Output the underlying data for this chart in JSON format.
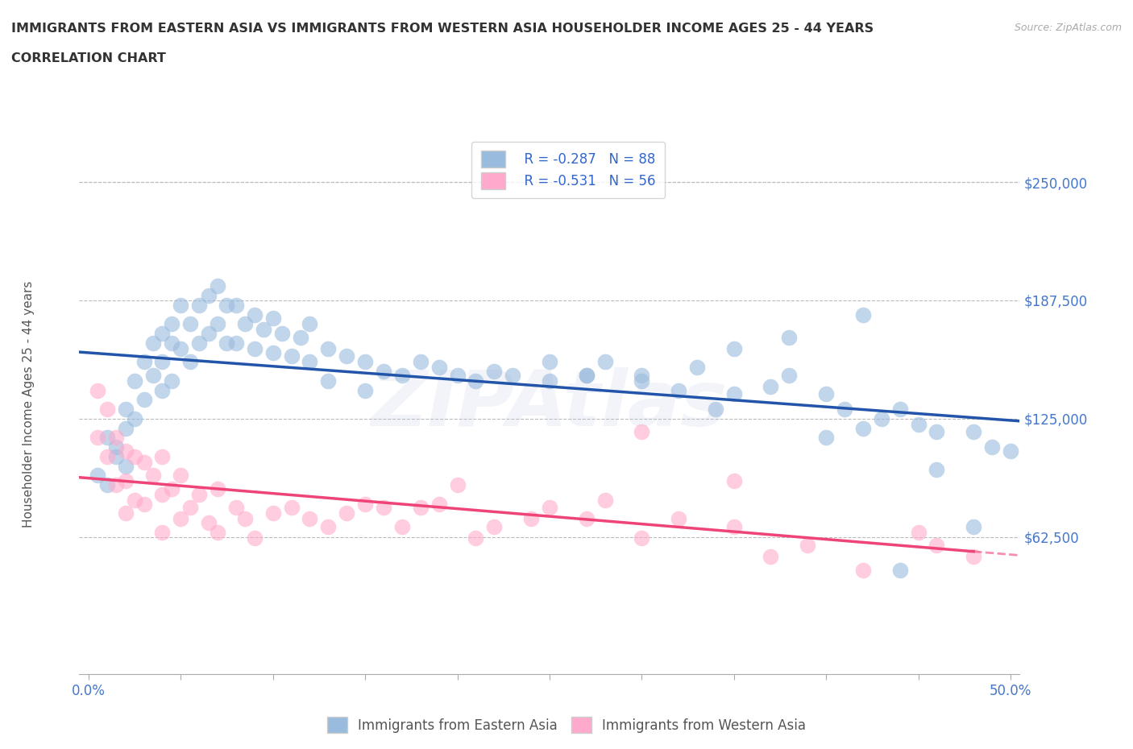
{
  "title_line1": "IMMIGRANTS FROM EASTERN ASIA VS IMMIGRANTS FROM WESTERN ASIA HOUSEHOLDER INCOME AGES 25 - 44 YEARS",
  "title_line2": "CORRELATION CHART",
  "source_text": "Source: ZipAtlas.com",
  "ylabel": "Householder Income Ages 25 - 44 years",
  "xlim": [
    -0.005,
    0.505
  ],
  "ylim": [
    -10000,
    275000
  ],
  "xtick_vals": [
    0.0,
    0.05,
    0.1,
    0.15,
    0.2,
    0.25,
    0.3,
    0.35,
    0.4,
    0.45,
    0.5
  ],
  "xtick_labels": [
    "0.0%",
    "",
    "",
    "",
    "",
    "",
    "",
    "",
    "",
    "",
    "50.0%"
  ],
  "ytick_vals": [
    62500,
    125000,
    187500,
    250000
  ],
  "ytick_labels": [
    "$62,500",
    "$125,000",
    "$187,500",
    "$250,000"
  ],
  "grid_color": "#bbbbbb",
  "background_color": "#ffffff",
  "watermark": "ZIPAtlas",
  "legend_r1": "R = -0.287   N = 88",
  "legend_r2": "R = -0.531   N = 56",
  "legend_label1": "Immigrants from Eastern Asia",
  "legend_label2": "Immigrants from Western Asia",
  "color_blue": "#99bbdd",
  "color_pink": "#ffaacc",
  "trend_blue": "#2255aa",
  "trend_pink": "#ee4477",
  "title_color": "#333333",
  "axis_label_color": "#555555",
  "tick_label_color": "#4477cc",
  "r_color": "#3366cc",
  "eastern_x": [
    0.005,
    0.01,
    0.01,
    0.015,
    0.015,
    0.02,
    0.02,
    0.02,
    0.025,
    0.025,
    0.03,
    0.03,
    0.035,
    0.035,
    0.04,
    0.04,
    0.04,
    0.045,
    0.045,
    0.045,
    0.05,
    0.05,
    0.055,
    0.055,
    0.06,
    0.06,
    0.065,
    0.065,
    0.07,
    0.07,
    0.075,
    0.075,
    0.08,
    0.08,
    0.085,
    0.09,
    0.09,
    0.095,
    0.1,
    0.1,
    0.105,
    0.11,
    0.115,
    0.12,
    0.12,
    0.13,
    0.13,
    0.14,
    0.15,
    0.15,
    0.16,
    0.17,
    0.18,
    0.19,
    0.2,
    0.21,
    0.22,
    0.23,
    0.25,
    0.27,
    0.28,
    0.3,
    0.32,
    0.33,
    0.35,
    0.37,
    0.38,
    0.4,
    0.41,
    0.43,
    0.44,
    0.45,
    0.46,
    0.48,
    0.49,
    0.5,
    0.38,
    0.42,
    0.25,
    0.3,
    0.35,
    0.42,
    0.48,
    0.34,
    0.27,
    0.44,
    0.4,
    0.46
  ],
  "eastern_y": [
    95000,
    115000,
    90000,
    110000,
    105000,
    130000,
    120000,
    100000,
    145000,
    125000,
    155000,
    135000,
    165000,
    148000,
    170000,
    155000,
    140000,
    175000,
    165000,
    145000,
    185000,
    162000,
    175000,
    155000,
    185000,
    165000,
    190000,
    170000,
    195000,
    175000,
    185000,
    165000,
    185000,
    165000,
    175000,
    180000,
    162000,
    172000,
    178000,
    160000,
    170000,
    158000,
    168000,
    175000,
    155000,
    162000,
    145000,
    158000,
    155000,
    140000,
    150000,
    148000,
    155000,
    152000,
    148000,
    145000,
    150000,
    148000,
    145000,
    148000,
    155000,
    148000,
    140000,
    152000,
    138000,
    142000,
    148000,
    138000,
    130000,
    125000,
    130000,
    122000,
    118000,
    118000,
    110000,
    108000,
    168000,
    180000,
    155000,
    145000,
    162000,
    120000,
    68000,
    130000,
    148000,
    45000,
    115000,
    98000
  ],
  "western_x": [
    0.005,
    0.005,
    0.01,
    0.01,
    0.015,
    0.015,
    0.02,
    0.02,
    0.02,
    0.025,
    0.025,
    0.03,
    0.03,
    0.035,
    0.04,
    0.04,
    0.04,
    0.045,
    0.05,
    0.05,
    0.055,
    0.06,
    0.065,
    0.07,
    0.07,
    0.08,
    0.085,
    0.09,
    0.1,
    0.11,
    0.12,
    0.13,
    0.14,
    0.15,
    0.16,
    0.17,
    0.18,
    0.19,
    0.2,
    0.21,
    0.22,
    0.24,
    0.25,
    0.27,
    0.28,
    0.3,
    0.32,
    0.35,
    0.37,
    0.39,
    0.42,
    0.45,
    0.46,
    0.48,
    0.3,
    0.35
  ],
  "western_y": [
    140000,
    115000,
    130000,
    105000,
    115000,
    90000,
    108000,
    92000,
    75000,
    105000,
    82000,
    102000,
    80000,
    95000,
    105000,
    85000,
    65000,
    88000,
    95000,
    72000,
    78000,
    85000,
    70000,
    88000,
    65000,
    78000,
    72000,
    62000,
    75000,
    78000,
    72000,
    68000,
    75000,
    80000,
    78000,
    68000,
    78000,
    80000,
    90000,
    62000,
    68000,
    72000,
    78000,
    72000,
    82000,
    62000,
    72000,
    68000,
    52000,
    58000,
    45000,
    65000,
    58000,
    52000,
    118000,
    92000
  ]
}
